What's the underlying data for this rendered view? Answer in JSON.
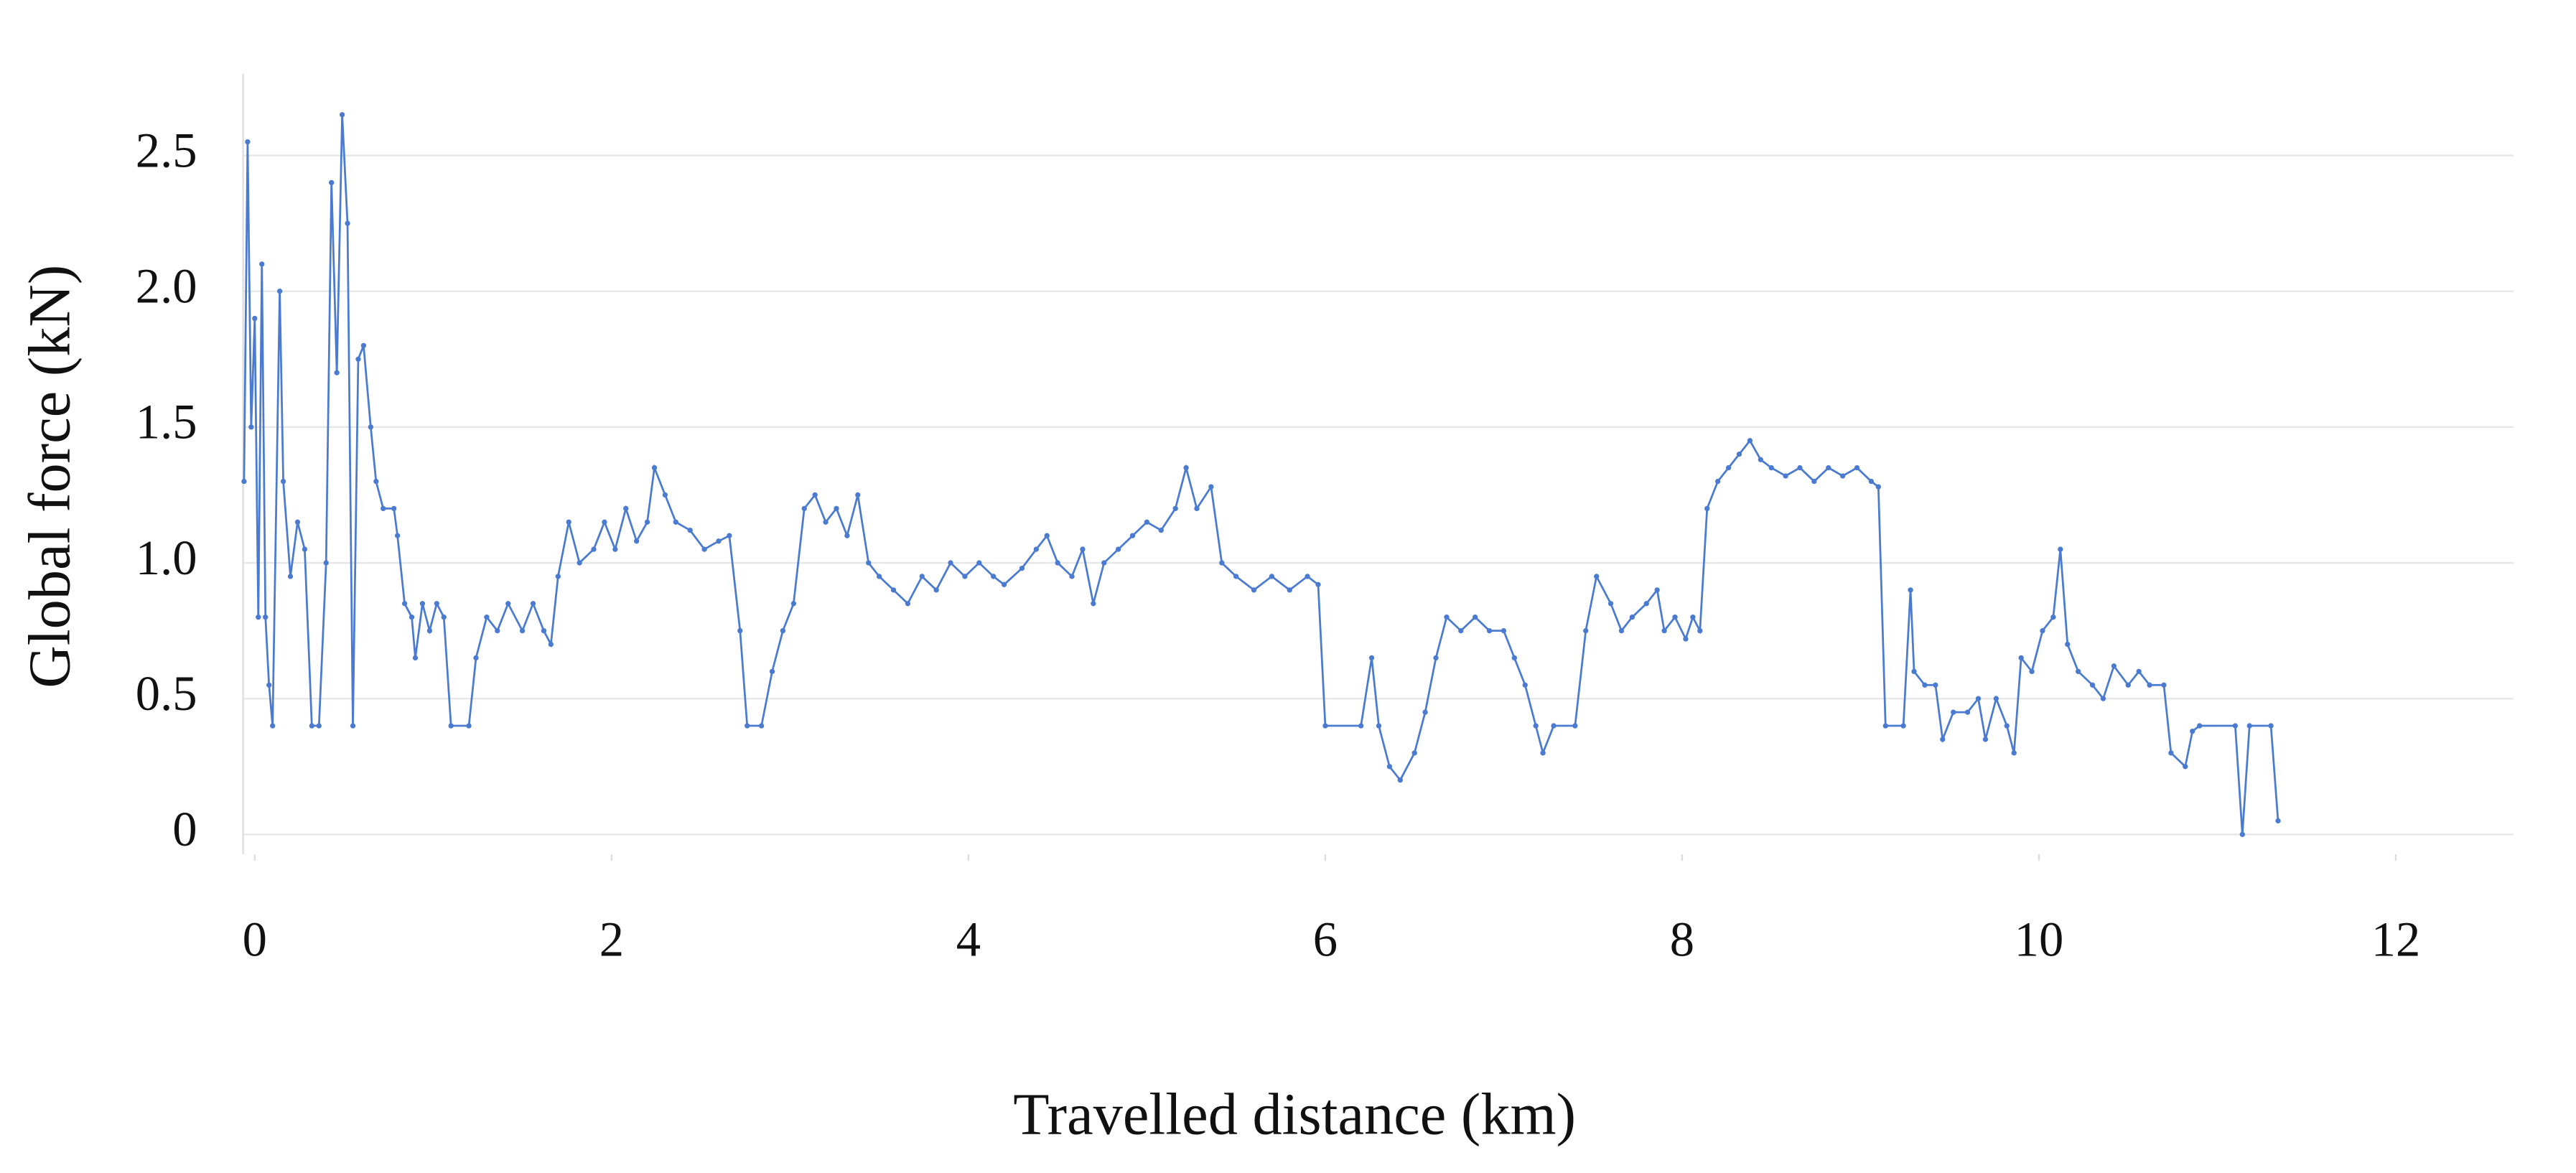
{
  "chart_data": {
    "type": "line",
    "x_label": "Travelled distance (km)",
    "y_label": "Global force (kN)",
    "xlim": [
      -0.065,
      12.66
    ],
    "xticks": [
      0,
      2,
      4,
      6,
      8,
      10,
      12
    ],
    "ylim": [
      -0.073,
      2.8
    ],
    "yticks": [
      0,
      {
        "value": 0.5,
        "label": "0.5"
      },
      {
        "value": 1.0,
        "label": "1.0"
      },
      {
        "value": 1.5,
        "label": "1.5"
      },
      {
        "value": 2.0,
        "label": "2.0"
      },
      {
        "value": 2.5,
        "label": "2.5"
      }
    ],
    "grid": true,
    "x": [
      -0.06,
      -0.04,
      -0.02,
      0.0,
      0.02,
      0.04,
      0.06,
      0.08,
      0.1,
      0.14,
      0.16,
      0.2,
      0.24,
      0.28,
      0.32,
      0.36,
      0.4,
      0.43,
      0.46,
      0.49,
      0.52,
      0.55,
      0.58,
      0.61,
      0.65,
      0.68,
      0.72,
      0.78,
      0.8,
      0.84,
      0.88,
      0.9,
      0.94,
      0.98,
      1.02,
      1.06,
      1.1,
      1.2,
      1.24,
      1.3,
      1.36,
      1.42,
      1.5,
      1.56,
      1.62,
      1.66,
      1.7,
      1.76,
      1.82,
      1.9,
      1.96,
      2.02,
      2.08,
      2.14,
      2.2,
      2.24,
      2.3,
      2.36,
      2.44,
      2.52,
      2.6,
      2.66,
      2.72,
      2.76,
      2.84,
      2.9,
      2.96,
      3.02,
      3.08,
      3.14,
      3.2,
      3.26,
      3.32,
      3.38,
      3.44,
      3.5,
      3.58,
      3.66,
      3.74,
      3.82,
      3.9,
      3.98,
      4.06,
      4.14,
      4.2,
      4.3,
      4.38,
      4.44,
      4.5,
      4.58,
      4.64,
      4.7,
      4.76,
      4.84,
      4.92,
      5.0,
      5.08,
      5.16,
      5.22,
      5.28,
      5.36,
      5.42,
      5.5,
      5.6,
      5.7,
      5.8,
      5.9,
      5.96,
      6.0,
      6.2,
      6.26,
      6.3,
      6.36,
      6.42,
      6.5,
      6.56,
      6.62,
      6.68,
      6.76,
      6.84,
      6.92,
      7.0,
      7.06,
      7.12,
      7.18,
      7.22,
      7.28,
      7.4,
      7.46,
      7.52,
      7.6,
      7.66,
      7.72,
      7.8,
      7.86,
      7.9,
      7.96,
      8.02,
      8.06,
      8.1,
      8.14,
      8.2,
      8.26,
      8.32,
      8.38,
      8.44,
      8.5,
      8.58,
      8.66,
      8.74,
      8.82,
      8.9,
      8.98,
      9.06,
      9.1,
      9.14,
      9.24,
      9.28,
      9.3,
      9.36,
      9.42,
      9.46,
      9.52,
      9.6,
      9.66,
      9.7,
      9.76,
      9.82,
      9.86,
      9.9,
      9.96,
      10.02,
      10.08,
      10.12,
      10.16,
      10.22,
      10.3,
      10.36,
      10.42,
      10.5,
      10.56,
      10.62,
      10.7,
      10.74,
      10.82,
      10.86,
      10.9,
      11.1,
      11.14,
      11.18,
      11.3,
      11.34
    ],
    "series": [
      {
        "color": "#4a7bd0",
        "values": [
          1.3,
          2.55,
          1.5,
          1.9,
          0.8,
          2.1,
          0.8,
          0.55,
          0.4,
          2.0,
          1.3,
          0.95,
          1.15,
          1.05,
          0.4,
          0.4,
          1.0,
          2.4,
          1.7,
          2.65,
          2.25,
          0.4,
          1.75,
          1.8,
          1.5,
          1.3,
          1.2,
          1.2,
          1.1,
          0.85,
          0.8,
          0.65,
          0.85,
          0.75,
          0.85,
          0.8,
          0.4,
          0.4,
          0.65,
          0.8,
          0.75,
          0.85,
          0.75,
          0.85,
          0.75,
          0.7,
          0.95,
          1.15,
          1.0,
          1.05,
          1.15,
          1.05,
          1.2,
          1.08,
          1.15,
          1.35,
          1.25,
          1.15,
          1.12,
          1.05,
          1.08,
          1.1,
          0.75,
          0.4,
          0.4,
          0.6,
          0.75,
          0.85,
          1.2,
          1.25,
          1.15,
          1.2,
          1.1,
          1.25,
          1.0,
          0.95,
          0.9,
          0.85,
          0.95,
          0.9,
          1.0,
          0.95,
          1.0,
          0.95,
          0.92,
          0.98,
          1.05,
          1.1,
          1.0,
          0.95,
          1.05,
          0.85,
          1.0,
          1.05,
          1.1,
          1.15,
          1.12,
          1.2,
          1.35,
          1.2,
          1.28,
          1.0,
          0.95,
          0.9,
          0.95,
          0.9,
          0.95,
          0.92,
          0.4,
          0.4,
          0.65,
          0.4,
          0.25,
          0.2,
          0.3,
          0.45,
          0.65,
          0.8,
          0.75,
          0.8,
          0.75,
          0.75,
          0.65,
          0.55,
          0.4,
          0.3,
          0.4,
          0.4,
          0.75,
          0.95,
          0.85,
          0.75,
          0.8,
          0.85,
          0.9,
          0.75,
          0.8,
          0.72,
          0.8,
          0.75,
          1.2,
          1.3,
          1.35,
          1.4,
          1.45,
          1.38,
          1.35,
          1.32,
          1.35,
          1.3,
          1.35,
          1.32,
          1.35,
          1.3,
          1.28,
          0.4,
          0.4,
          0.9,
          0.6,
          0.55,
          0.55,
          0.35,
          0.45,
          0.45,
          0.5,
          0.35,
          0.5,
          0.4,
          0.3,
          0.65,
          0.6,
          0.75,
          0.8,
          1.05,
          0.7,
          0.6,
          0.55,
          0.5,
          0.62,
          0.55,
          0.6,
          0.55,
          0.55,
          0.3,
          0.25,
          0.38,
          0.4,
          0.4,
          0.0,
          0.4,
          0.4,
          0.05
        ]
      }
    ]
  }
}
